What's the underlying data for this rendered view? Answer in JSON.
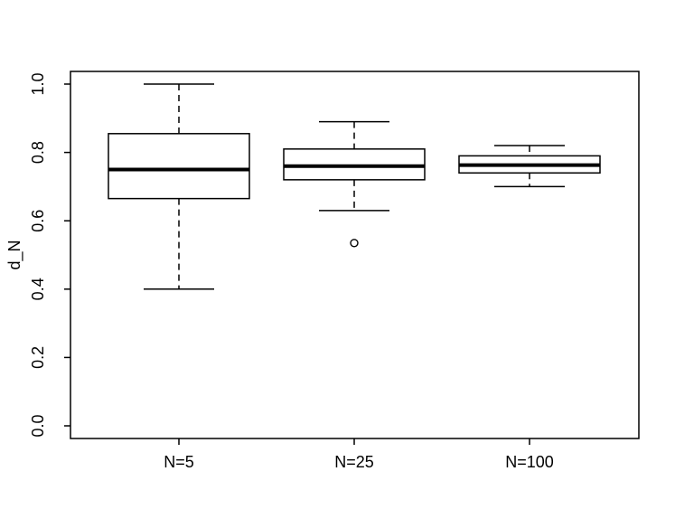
{
  "figure": {
    "background": "#ffffff",
    "stroke_color": "#000000",
    "ylabel": "d_N",
    "x_tick_labels": [
      "N=5",
      "N=25",
      "N=100"
    ],
    "y_tick_labels": [
      "0.0",
      "0.2",
      "0.4",
      "0.6",
      "0.8",
      "1.0"
    ]
  },
  "chart_data": {
    "type": "boxplot",
    "title": "",
    "xlabel": "",
    "ylabel": "d_N",
    "categories": [
      "N=5",
      "N=25",
      "N=100"
    ],
    "ylim": [
      0.0,
      1.0
    ],
    "y_ticks": [
      0.0,
      0.2,
      0.4,
      0.6,
      0.8,
      1.0
    ],
    "grid": false,
    "legend": false,
    "series": [
      {
        "name": "N=5",
        "whisker_low": 0.4,
        "q1": 0.665,
        "median": 0.75,
        "q3": 0.855,
        "whisker_high": 1.0,
        "outliers": []
      },
      {
        "name": "N=25",
        "whisker_low": 0.63,
        "q1": 0.72,
        "median": 0.76,
        "q3": 0.81,
        "whisker_high": 0.89,
        "outliers": [
          0.535
        ]
      },
      {
        "name": "N=100",
        "whisker_low": 0.7,
        "q1": 0.74,
        "median": 0.763,
        "q3": 0.79,
        "whisker_high": 0.82,
        "outliers": []
      }
    ]
  }
}
